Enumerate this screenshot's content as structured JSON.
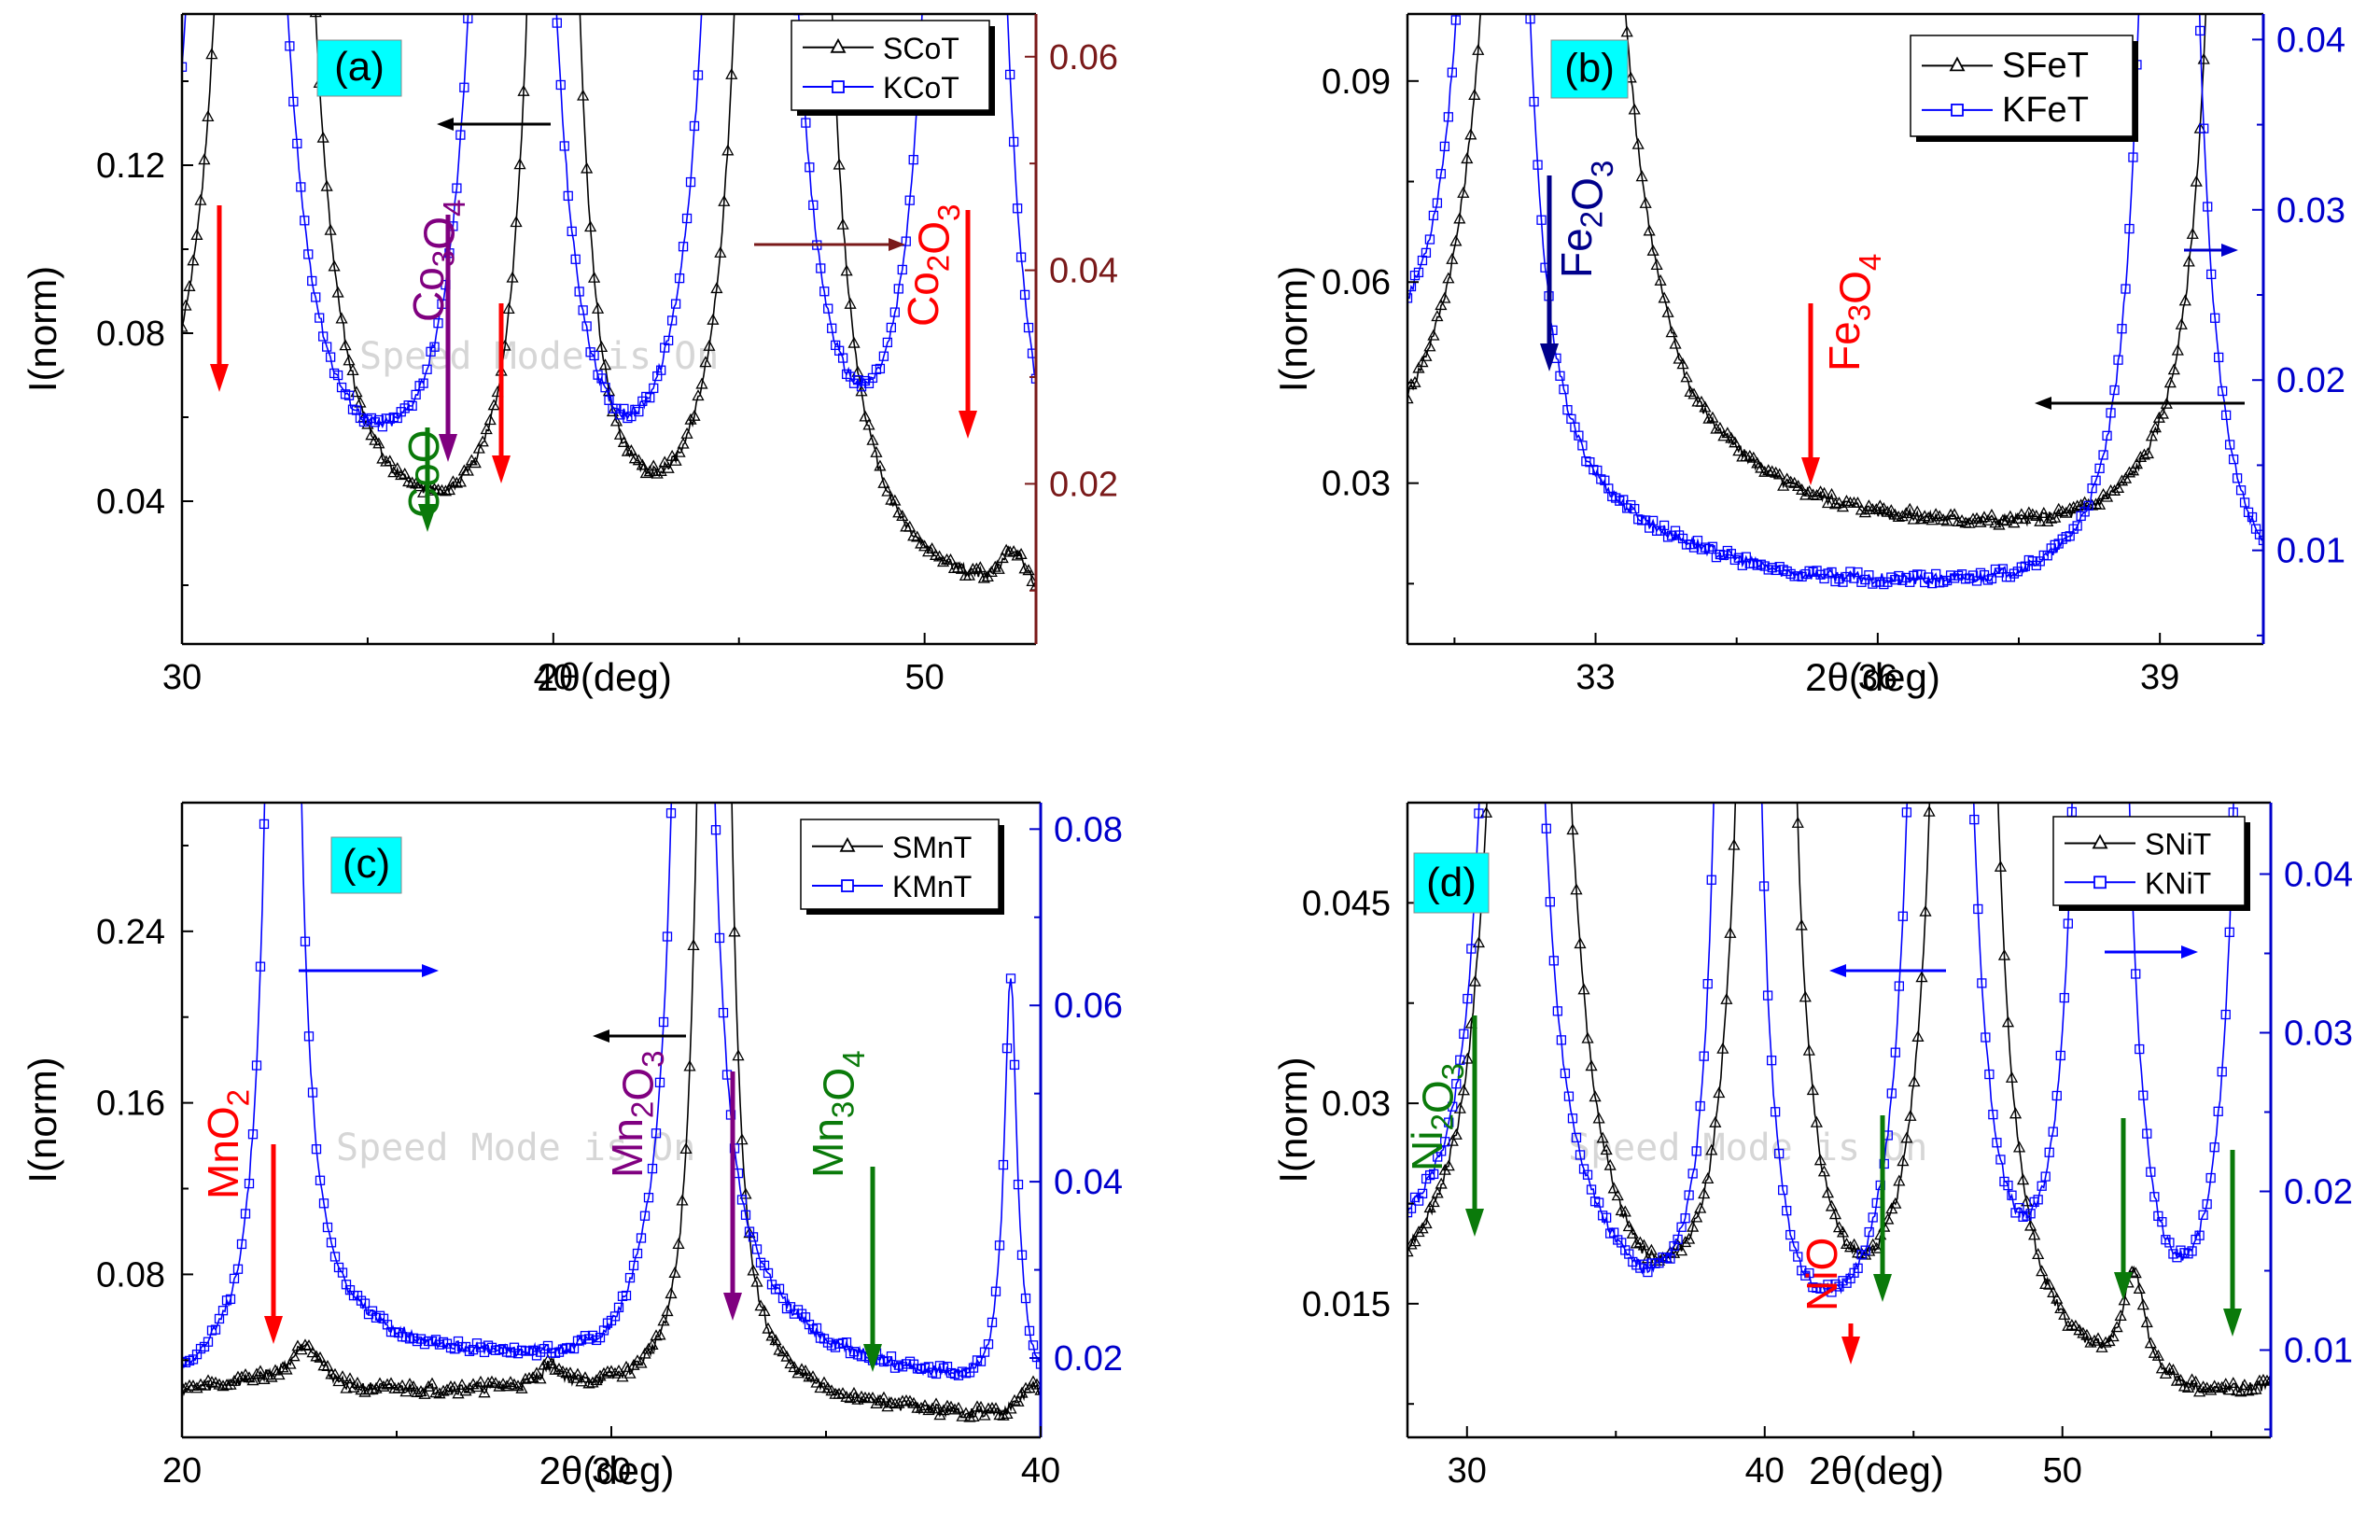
{
  "chart_data": [
    {
      "type": "line",
      "panel_label": "(a)",
      "xlabel": "2θ(deg)",
      "ylabel": "I(norm)",
      "xlim": [
        30,
        53
      ],
      "ylim": [
        0.006,
        0.156
      ],
      "y2lim": [
        0.005,
        0.064
      ],
      "xticks": [
        30,
        40,
        50
      ],
      "yticks": [
        0.04,
        0.08,
        0.12
      ],
      "yticks_right": [
        0.02,
        0.04,
        0.06
      ],
      "right_axis_color": "#7a1a1a",
      "watermark": "Speed Mode is On",
      "legend_placement": "top-right",
      "series": [
        {
          "name": "SCoT",
          "axis": "left",
          "color": "#000000",
          "marker": "triangle",
          "baseline": [
            [
              30,
              0.031
            ],
            [
              31.5,
              0.027
            ],
            [
              33,
              0.022
            ],
            [
              36,
              0.02
            ],
            [
              38,
              0.018
            ],
            [
              40,
              0.014
            ],
            [
              45,
              0.015
            ],
            [
              50,
              0.013
            ],
            [
              53,
              0.012
            ]
          ],
          "peaks": [
            [
              31.9,
              0.4,
              0.55
            ],
            [
              32.6,
              0.4,
              0.55
            ],
            [
              40.0,
              0.4,
              0.5
            ],
            [
              45.7,
              0.4,
              0.5
            ],
            [
              46.7,
              0.4,
              0.5
            ],
            [
              52.4,
              0.01,
              0.4
            ]
          ]
        },
        {
          "name": "KCoT",
          "axis": "right",
          "color": "#0000ff",
          "marker": "square",
          "baseline": [
            [
              30,
              0.017
            ],
            [
              31,
              0.017
            ],
            [
              32,
              0.013
            ],
            [
              36,
              0.011
            ],
            [
              39,
              0.009
            ],
            [
              42,
              0.0075
            ],
            [
              46,
              0.0075
            ],
            [
              50,
              0.007
            ],
            [
              53,
              0.006
            ]
          ],
          "peaks": [
            [
              31.5,
              0.4,
              0.5
            ],
            [
              38.9,
              0.4,
              0.45
            ],
            [
              45.3,
              0.4,
              0.5
            ],
            [
              51.1,
              0.4,
              0.45
            ]
          ]
        }
      ],
      "annotations": [
        {
          "text": "CoO",
          "x": 36.4,
          "y": 0.034,
          "color": "#0a7a0a",
          "rotated": true
        },
        {
          "text": "Co₃O₄",
          "x": 37.5,
          "y": 0.1,
          "color": "#800080",
          "rotated": true
        },
        {
          "text": "Co₂O₃",
          "x": 50.8,
          "y": 0.1,
          "color": "#ff0000",
          "rotated": true
        }
      ]
    },
    {
      "type": "line",
      "panel_label": "(b)",
      "xlabel": "2θ(deg)",
      "ylabel": "I(norm)",
      "xlim": [
        31.0,
        40.1
      ],
      "ylim": [
        0.006,
        0.1
      ],
      "y2lim": [
        0.0045,
        0.0415
      ],
      "xticks": [
        33,
        36,
        39
      ],
      "yticks": [
        0.03,
        0.06,
        0.09
      ],
      "yticks_right": [
        0.01,
        0.02,
        0.03,
        0.04
      ],
      "right_axis_color": "#0000cc",
      "legend_placement": "top-right",
      "series": [
        {
          "name": "SFeT",
          "axis": "left",
          "color": "#000000",
          "marker": "triangle",
          "baseline": [
            [
              31,
              0.029
            ],
            [
              31.5,
              0.033
            ],
            [
              32.2,
              0.045
            ],
            [
              32.8,
              0.06
            ],
            [
              33.2,
              0.04
            ],
            [
              34,
              0.028
            ],
            [
              35,
              0.024
            ],
            [
              36,
              0.022
            ],
            [
              38,
              0.02
            ],
            [
              39.5,
              0.019
            ],
            [
              40.1,
              0.02
            ]
          ],
          "peaks": [
            [
              32.35,
              0.5,
              0.18
            ],
            [
              32.75,
              0.5,
              0.18
            ],
            [
              39.9,
              0.5,
              0.18
            ]
          ]
        },
        {
          "name": "KFeT",
          "axis": "right",
          "color": "#0000ff",
          "marker": "square",
          "baseline": [
            [
              31.6,
              0.02
            ],
            [
              32.3,
              0.011
            ],
            [
              33,
              0.0105
            ],
            [
              35,
              0.008
            ],
            [
              37,
              0.0072
            ],
            [
              38.9,
              0.0065
            ],
            [
              39.5,
              0.006
            ],
            [
              40.1,
              0.006
            ]
          ],
          "peaks": [
            [
              31.95,
              0.2,
              0.15
            ],
            [
              39.1,
              0.2,
              0.15
            ]
          ]
        }
      ],
      "annotations": [
        {
          "text": "Fe₂O₃",
          "x": 33.4,
          "y": 0.072,
          "color": "#00008b",
          "rotated": true
        },
        {
          "text": "Fe₃O₄",
          "x": 36.1,
          "y": 0.055,
          "color": "#ff0000",
          "rotated": true
        }
      ]
    },
    {
      "type": "line",
      "panel_label": "(c)",
      "xlabel": "2θ(deg)",
      "ylabel": "I(norm)",
      "xlim": [
        20,
        40
      ],
      "ylim": [
        0.004,
        0.3
      ],
      "y2lim": [
        0.011,
        0.083
      ],
      "xticks": [
        20,
        30,
        40
      ],
      "yticks": [
        0.08,
        0.16,
        0.24
      ],
      "yticks_right": [
        0.02,
        0.04,
        0.06,
        0.08
      ],
      "right_axis_color": "#0000cc",
      "watermark": "Speed Mode is On",
      "legend_placement": "top-right",
      "series": [
        {
          "name": "SMnT",
          "axis": "left",
          "color": "#000000",
          "marker": "triangle",
          "baseline": [
            [
              20,
              0.026
            ],
            [
              22,
              0.03
            ],
            [
              24,
              0.025
            ],
            [
              28,
              0.025
            ],
            [
              30,
              0.024
            ],
            [
              32,
              0.022
            ],
            [
              33,
              0.03
            ],
            [
              35,
              0.02
            ],
            [
              38,
              0.014
            ],
            [
              40,
              0.012
            ]
          ],
          "peaks": [
            [
              22.9,
              0.02,
              0.4
            ],
            [
              28.6,
              0.01,
              0.3
            ],
            [
              32.2,
              0.4,
              0.25
            ],
            [
              32.6,
              0.4,
              0.22
            ],
            [
              39.8,
              0.015,
              0.3
            ]
          ]
        },
        {
          "name": "KMnT",
          "axis": "right",
          "color": "#0000ff",
          "marker": "square",
          "baseline": [
            [
              20,
              0.0165
            ],
            [
              21.5,
              0.018
            ],
            [
              22.6,
              0.022
            ],
            [
              24,
              0.0215
            ],
            [
              27,
              0.0195
            ],
            [
              30,
              0.0185
            ],
            [
              31,
              0.022
            ],
            [
              32.5,
              0.026
            ],
            [
              35,
              0.02
            ],
            [
              38,
              0.017
            ],
            [
              40,
              0.016
            ]
          ],
          "peaks": [
            [
              22.35,
              0.3,
              0.22
            ],
            [
              31.9,
              0.3,
              0.25
            ],
            [
              39.3,
              0.0465,
              0.18
            ]
          ]
        }
      ],
      "annotations": [
        {
          "text": "MnO₂",
          "x": 21.5,
          "y": 0.1,
          "color": "#ff0000",
          "rotated": true
        },
        {
          "text": "Mn₂O₃",
          "x": 31.3,
          "y": 0.12,
          "color": "#800080",
          "rotated": true
        },
        {
          "text": "Mn₃O₄",
          "x": 35.2,
          "y": 0.1,
          "color": "#0a7a0a",
          "rotated": true
        }
      ]
    },
    {
      "type": "line",
      "panel_label": "(d)",
      "xlabel": "2θ(deg)",
      "ylabel": "I(norm)",
      "xlim": [
        28,
        57
      ],
      "ylim": [
        0.005,
        0.0525
      ],
      "y2lim": [
        0.0045,
        0.0445
      ],
      "xticks": [
        30,
        40,
        50
      ],
      "yticks": [
        0.015,
        0.03,
        0.045
      ],
      "yticks_right": [
        0.01,
        0.02,
        0.03,
        0.04
      ],
      "right_axis_color": "#0000cc",
      "watermark": "Speed Mode is On",
      "legend_placement": "top-right",
      "series": [
        {
          "name": "SNiT",
          "axis": "left",
          "color": "#000000",
          "marker": "triangle",
          "baseline": [
            [
              28,
              0.014
            ],
            [
              30,
              0.0145
            ],
            [
              31.5,
              0.018
            ],
            [
              33,
              0.015
            ],
            [
              36,
              0.01
            ],
            [
              40,
              0.0085
            ],
            [
              44,
              0.008
            ],
            [
              48,
              0.0075
            ],
            [
              52,
              0.0075
            ],
            [
              55,
              0.007
            ],
            [
              57,
              0.008
            ]
          ],
          "peaks": [
            [
              32.1,
              0.4,
              0.45
            ],
            [
              40.05,
              0.4,
              0.35
            ],
            [
              46.7,
              0.4,
              0.4
            ],
            [
              52.4,
              0.008,
              0.4
            ]
          ]
        },
        {
          "name": "KNiT",
          "axis": "right",
          "color": "#0000ff",
          "marker": "square",
          "baseline": [
            [
              28,
              0.0155
            ],
            [
              30.5,
              0.016
            ],
            [
              31.5,
              0.02
            ],
            [
              33,
              0.016
            ],
            [
              36,
              0.01
            ],
            [
              38,
              0.008
            ],
            [
              40,
              0.007
            ],
            [
              44,
              0.0065
            ],
            [
              46,
              0.0065
            ],
            [
              50,
              0.006
            ],
            [
              53,
              0.005
            ],
            [
              55,
              0.0055
            ],
            [
              57,
              0.006
            ]
          ],
          "peaks": [
            [
              31.5,
              0.4,
              0.3
            ],
            [
              39.1,
              0.4,
              0.25
            ],
            [
              45.9,
              0.4,
              0.35
            ],
            [
              51.3,
              0.4,
              0.3
            ],
            [
              56.7,
              0.4,
              0.3
            ]
          ]
        }
      ],
      "annotations": [
        {
          "text": "Ni₂O₃",
          "x": 29.8,
          "y": 0.029,
          "color": "#0a7a0a",
          "rotated": true
        },
        {
          "text": "NiO",
          "x": 41.6,
          "y": 0.015,
          "color": "#ff0000",
          "rotated": true
        }
      ]
    }
  ]
}
